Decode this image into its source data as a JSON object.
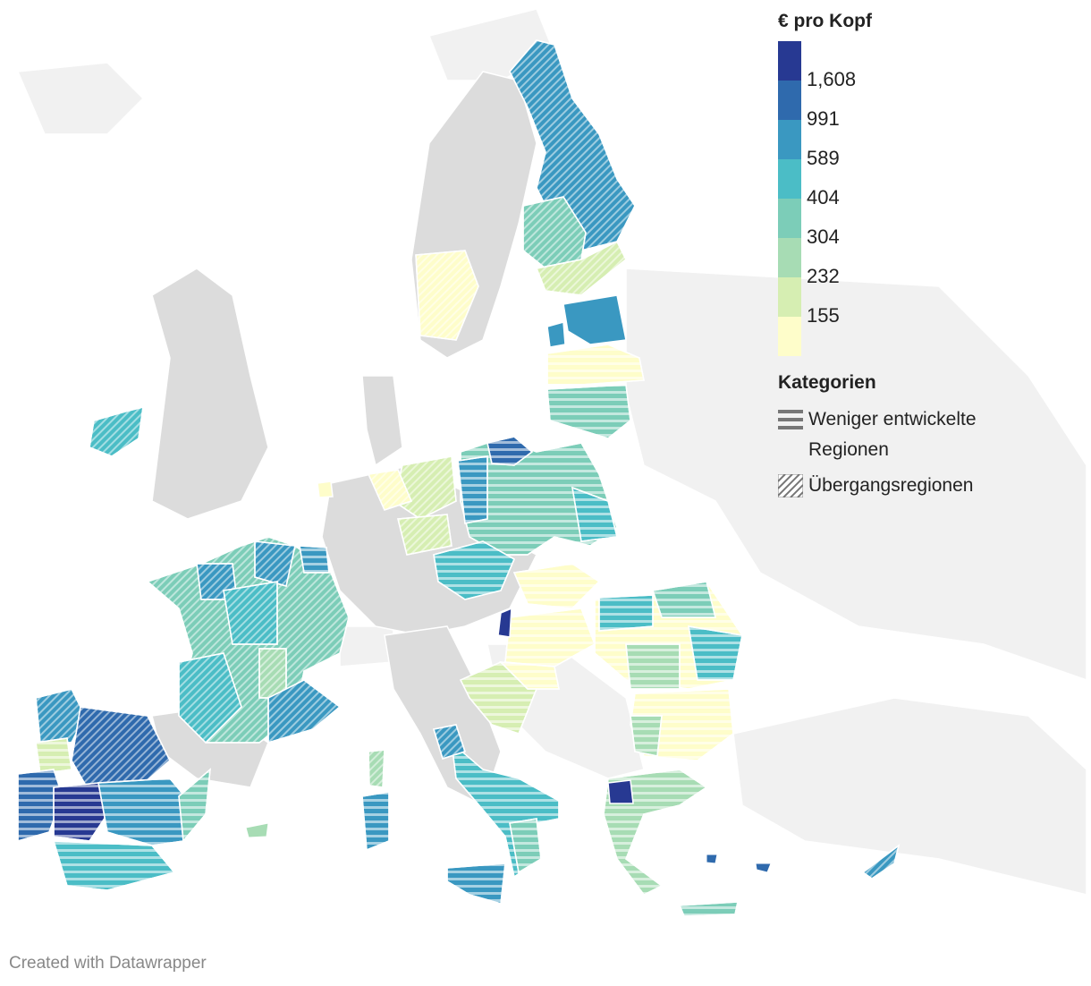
{
  "legend": {
    "title": "€ pro Kopf",
    "breaks": [
      "1,608",
      "991",
      "589",
      "404",
      "304",
      "232",
      "155"
    ],
    "colors": [
      "#273992",
      "#2f6aad",
      "#3a98c1",
      "#4bbdc6",
      "#7ccdb8",
      "#a7dcb4",
      "#d6eeb2",
      "#fefdca"
    ]
  },
  "categories": {
    "title": "Kategorien",
    "items": [
      {
        "label": "Weniger entwickelte Regionen",
        "pattern": "horizontal-stripes"
      },
      {
        "label": "Übergangsregionen",
        "pattern": "diagonal-hatch"
      }
    ]
  },
  "colors": {
    "base_country": "#dcdcdc",
    "non_eu": "#f1f1f1",
    "border": "#ffffff"
  },
  "footer": "Created with Datawrapper"
}
